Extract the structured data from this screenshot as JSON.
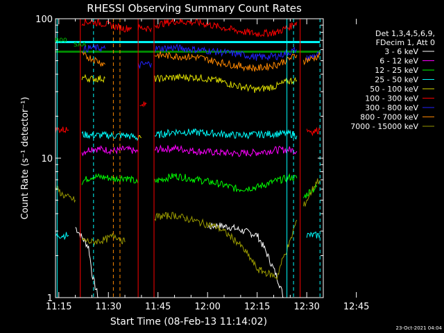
{
  "chart_data": {
    "type": "line",
    "title": "RHESSI Observing Summary Count Rates",
    "xlabel": "Start Time (08-Feb-13 11:14:02)",
    "ylabel": "Count Rate (s⁻¹ detector⁻¹)",
    "yscale": "log",
    "ylim": [
      1,
      100
    ],
    "xlim_minutes": [
      -1,
      80
    ],
    "xticks": [
      "11:15",
      "11:30",
      "11:45",
      "12:00",
      "12:15",
      "12:30",
      "12:45"
    ],
    "yticks": [
      "1",
      "10",
      "100"
    ],
    "footer_date": "23-Oct-2021 04:04",
    "flag_labels": [
      "R00",
      "SAA"
    ],
    "legend_header": [
      "Det 1,3,4,5,6,9,",
      "FDecim 1, Att 0"
    ],
    "series": [
      {
        "name": "3 - 6 keV",
        "color": "#ffffff",
        "segments": [
          {
            "x": [
              5,
              7,
              9,
              10,
              11,
              12
            ],
            "y": [
              3.2,
              2.7,
              2.3,
              1.5,
              1.2,
              1.0
            ]
          },
          {
            "x": [
              45,
              48,
              52,
              56,
              60,
              64,
              68
            ],
            "y": [
              3.2,
              3.3,
              3.2,
              3.0,
              2.8,
              1.8,
              1.0
            ]
          }
        ]
      },
      {
        "name": "6 - 12 keV",
        "color": "#ff00ff",
        "segments": [
          {
            "x": [
              7,
              10,
              14,
              17,
              20,
              22,
              24
            ],
            "y": [
              11,
              11.8,
              11.5,
              11.3,
              11.6,
              11.4,
              11
            ]
          },
          {
            "x": [
              29,
              35,
              42,
              48,
              54,
              60,
              66,
              70,
              72
            ],
            "y": [
              11.5,
              11.8,
              11.2,
              11.0,
              10.8,
              11.0,
              11.5,
              11.5,
              11.2
            ]
          }
        ]
      },
      {
        "name": "12 - 25 keV",
        "color": "#00ff00",
        "segments": [
          {
            "x": [
              7,
              10,
              14,
              17,
              20,
              22,
              24
            ],
            "y": [
              6.8,
              7.4,
              7.3,
              7.1,
              7.3,
              7.0,
              6.6
            ]
          },
          {
            "x": [
              29,
              35,
              42,
              48,
              54,
              60,
              66,
              70,
              72
            ],
            "y": [
              6.8,
              7.5,
              7.0,
              6.6,
              6.0,
              6.2,
              6.9,
              7.3,
              7.2
            ]
          },
          {
            "x": [
              74,
              76,
              78
            ],
            "y": [
              5.2,
              5.8,
              6.2
            ]
          }
        ]
      },
      {
        "name": "25 - 50 keV",
        "color": "#00ffff",
        "segments": [
          {
            "x": [
              -1,
              3
            ],
            "y": [
              2.8,
              2.8
            ]
          },
          {
            "x": [
              7,
              10,
              14,
              17,
              20,
              22,
              24
            ],
            "y": [
              14.8,
              14.6,
              14.6,
              14.5,
              14.6,
              14.3,
              14
            ]
          },
          {
            "x": [
              29,
              35,
              42,
              48,
              54,
              60,
              66,
              70,
              72
            ],
            "y": [
              14.5,
              15.5,
              15.3,
              15.0,
              14.6,
              14.8,
              15.0,
              15.0,
              14.5
            ]
          },
          {
            "x": [
              75,
              77,
              79
            ],
            "y": [
              2.8,
              2.8,
              2.8
            ]
          }
        ]
      },
      {
        "name": "50 - 100 keV",
        "color": "#dddd00",
        "segments": [
          {
            "x": [
              7,
              10,
              14
            ],
            "y": [
              38,
              37,
              37.5
            ]
          },
          {
            "x": [
              24,
              25
            ],
            "y": [
              14,
              14
            ]
          },
          {
            "x": [
              29,
              35,
              42,
              48,
              54,
              60,
              66,
              70,
              72
            ],
            "y": [
              37,
              38,
              38,
              36,
              33,
              31,
              33,
              36,
              36
            ]
          }
        ]
      },
      {
        "name": "100 - 300 keV",
        "color": "#ff0000",
        "segments": [
          {
            "x": [
              -1,
              3
            ],
            "y": [
              16,
              16
            ]
          },
          {
            "x": [
              7,
              10,
              14,
              17,
              20,
              22
            ],
            "y": [
              95,
              95,
              92,
              88,
              85,
              87
            ]
          },
          {
            "x": [
              24,
              25,
              26,
              28
            ],
            "y": [
              86,
              86,
              86,
              86
            ]
          },
          {
            "x": [
              24.5,
              25.5,
              26.5
            ],
            "y": [
              23,
              24,
              24.5
            ]
          },
          {
            "x": [
              29,
              35,
              42,
              48,
              54,
              60,
              66,
              70,
              72
            ],
            "y": [
              90,
              96,
              94,
              88,
              82,
              78,
              80,
              88,
              95
            ]
          },
          {
            "x": [
              75,
              77,
              79
            ],
            "y": [
              16,
              15.5,
              16
            ]
          }
        ]
      },
      {
        "name": "300 - 800 keV",
        "color": "#2222ff",
        "segments": [
          {
            "x": [
              7,
              10,
              14
            ],
            "y": [
              60,
              62,
              61
            ]
          },
          {
            "x": [
              24,
              25,
              26,
              28
            ],
            "y": [
              46,
              47,
              47,
              48
            ]
          },
          {
            "x": [
              29,
              35,
              42,
              48,
              54,
              60,
              66,
              70,
              72
            ],
            "y": [
              61,
              62,
              60,
              58,
              56,
              53,
              54,
              58,
              60
            ]
          },
          {
            "x": [
              75,
              77,
              79
            ],
            "y": [
              52,
              54,
              56
            ]
          }
        ]
      },
      {
        "name": "800 - 7000 keV",
        "color": "#ff8800",
        "segments": [
          {
            "x": [
              7,
              10,
              14
            ],
            "y": [
              55,
              52,
              47
            ]
          },
          {
            "x": [
              29,
              35,
              42,
              48,
              54,
              60,
              66,
              70,
              72
            ],
            "y": [
              55,
              54,
              53,
              49,
              46,
              44,
              47,
              52,
              55
            ]
          },
          {
            "x": [
              74,
              77,
              79
            ],
            "y": [
              50,
              52,
              55
            ]
          }
        ]
      },
      {
        "name": "7000 - 15000 keV",
        "color": "#999900",
        "segments": [
          {
            "x": [
              -1,
              1,
              3,
              5
            ],
            "y": [
              6.2,
              5.5,
              5.2,
              5.0
            ]
          },
          {
            "x": [
              7,
              10,
              14,
              17,
              20
            ],
            "y": [
              2.6,
              2.5,
              2.6,
              2.8,
              2.5
            ]
          },
          {
            "x": [
              29,
              35,
              42,
              48,
              54,
              60,
              66,
              70,
              72
            ],
            "y": [
              3.8,
              3.9,
              3.5,
              3.2,
              2.5,
              1.6,
              1.4,
              2.5,
              3.6
            ]
          },
          {
            "x": [
              74,
              76,
              78,
              79
            ],
            "y": [
              4.5,
              5.5,
              6.8,
              7.0
            ]
          }
        ]
      }
    ],
    "flags": [
      {
        "name": "R00",
        "color": "#008800",
        "y": 58,
        "x": [
          -1,
          79
        ]
      },
      {
        "name": "SAA",
        "color": "#00ffff",
        "y": 68,
        "x": [
          -1,
          79
        ]
      }
    ],
    "markers": [
      {
        "color": "#00ffff",
        "style": "solid",
        "x": -0.5
      },
      {
        "color": "#ff0000",
        "style": "solid",
        "x": 6.5
      },
      {
        "color": "#00ffff",
        "style": "dashed",
        "x": 10.5
      },
      {
        "color": "#ff8800",
        "style": "dashed",
        "x": 16.5
      },
      {
        "color": "#ff8800",
        "style": "dashed",
        "x": 18.5
      },
      {
        "color": "#ff0000",
        "style": "solid",
        "x": 24
      },
      {
        "color": "#ff0000",
        "style": "solid",
        "x": 28.8
      },
      {
        "color": "#00ffff",
        "style": "solid",
        "x": 69
      },
      {
        "color": "#00ffff",
        "style": "dashed",
        "x": 71
      },
      {
        "color": "#ff0000",
        "style": "solid",
        "x": 73
      },
      {
        "color": "#00ffff",
        "style": "dashed",
        "x": 79
      }
    ]
  }
}
